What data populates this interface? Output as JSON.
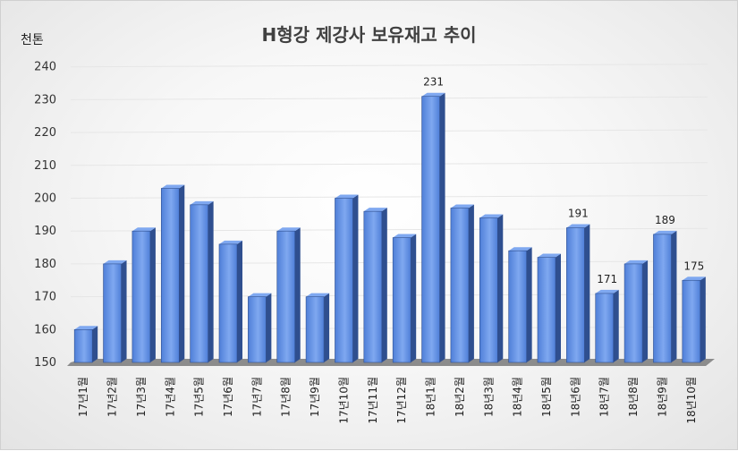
{
  "chart_data": {
    "type": "bar",
    "title": "H형강 제강사 보유재고 추이",
    "ylabel": "천톤",
    "xlabel": "",
    "ylim": [
      150,
      240
    ],
    "yticks": [
      150,
      160,
      170,
      180,
      190,
      200,
      210,
      220,
      230,
      240
    ],
    "grid": true,
    "categories": [
      "17년1월",
      "17년2월",
      "17년3월",
      "17년4월",
      "17년5월",
      "17년6월",
      "17년7월",
      "17년8월",
      "17년9월",
      "17년10월",
      "17년11월",
      "17년12월",
      "18년1월",
      "18년2월",
      "18년3월",
      "18년4월",
      "18년5월",
      "18년6월",
      "18년7월",
      "18년8월",
      "18년9월",
      "18년10월"
    ],
    "values": [
      160,
      180,
      190,
      203,
      198,
      186,
      170,
      190,
      170,
      200,
      196,
      188,
      231,
      197,
      194,
      184,
      182,
      191,
      171,
      180,
      189,
      175
    ],
    "data_labels": [
      {
        "category": "18년1월",
        "text": "231"
      },
      {
        "category": "18년6월",
        "text": "191"
      },
      {
        "category": "18년7월",
        "text": "171"
      },
      {
        "category": "18년9월",
        "text": "189"
      },
      {
        "category": "18년10월",
        "text": "175"
      }
    ],
    "colors": {
      "bar": "#4f7fd8",
      "bar_dark": "#2f4f8f",
      "bar_highlight": "#7fa8f0",
      "floor": "#8c8c8c",
      "grid": "#e6e6e6"
    }
  }
}
